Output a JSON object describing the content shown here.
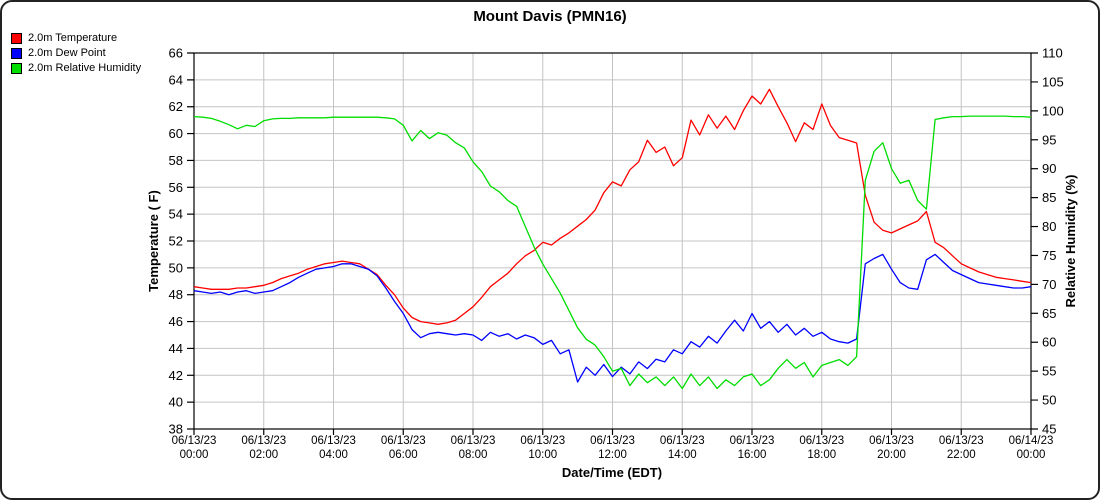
{
  "title": "Mount Davis (PMN16)",
  "legend": [
    {
      "label": "2.0m Temperature",
      "color": "#ff0000"
    },
    {
      "label": "2.0m Dew Point",
      "color": "#0000ff"
    },
    {
      "label": "2.0m Relative Humidity",
      "color": "#00dd00"
    }
  ],
  "colors": {
    "temperature": "#ff0000",
    "dew_point": "#0000ff",
    "relative_humidity": "#00dd00",
    "grid": "#c4c4c4",
    "frame": "#000000"
  },
  "chart_data": {
    "type": "line",
    "title": "Mount Davis (PMN16)",
    "xlabel": "Date/Time (EDT)",
    "ylabel_left": "Temperature ( F)",
    "ylabel_right": "Relative Humidity (%)",
    "x_range_hours": [
      0,
      24
    ],
    "x_start": "06/13/23 00:00",
    "x_end": "06/14/23 00:00",
    "ylim_left": [
      38,
      66
    ],
    "ylim_right": [
      45,
      110
    ],
    "grid": true,
    "legend_position": "top-left",
    "sample_interval_hours": 0.25,
    "left_ticks": [
      38,
      40,
      42,
      44,
      46,
      48,
      50,
      52,
      54,
      56,
      58,
      60,
      62,
      64,
      66
    ],
    "right_ticks": [
      45,
      50,
      55,
      60,
      65,
      70,
      75,
      80,
      85,
      90,
      95,
      100,
      105,
      110
    ],
    "x_ticks": [
      {
        "date": "06/13/23",
        "time": "00:00"
      },
      {
        "date": "06/13/23",
        "time": "02:00"
      },
      {
        "date": "06/13/23",
        "time": "04:00"
      },
      {
        "date": "06/13/23",
        "time": "06:00"
      },
      {
        "date": "06/13/23",
        "time": "08:00"
      },
      {
        "date": "06/13/23",
        "time": "10:00"
      },
      {
        "date": "06/13/23",
        "time": "12:00"
      },
      {
        "date": "06/13/23",
        "time": "14:00"
      },
      {
        "date": "06/13/23",
        "time": "16:00"
      },
      {
        "date": "06/13/23",
        "time": "18:00"
      },
      {
        "date": "06/13/23",
        "time": "20:00"
      },
      {
        "date": "06/13/23",
        "time": "22:00"
      },
      {
        "date": "06/14/23",
        "time": "00:00"
      }
    ],
    "series": [
      {
        "name": "2.0m Temperature",
        "axis": "left",
        "unit": "F",
        "color": "#ff0000",
        "values": [
          48.6,
          48.5,
          48.4,
          48.4,
          48.4,
          48.5,
          48.5,
          48.6,
          48.7,
          48.9,
          49.2,
          49.4,
          49.6,
          49.9,
          50.1,
          50.3,
          50.4,
          50.5,
          50.4,
          50.3,
          49.9,
          49.5,
          48.7,
          48.0,
          47.0,
          46.3,
          46.0,
          45.9,
          45.8,
          45.9,
          46.1,
          46.6,
          47.1,
          47.8,
          48.6,
          49.1,
          49.6,
          50.3,
          50.9,
          51.3,
          51.9,
          51.7,
          52.2,
          52.6,
          53.1,
          53.6,
          54.3,
          55.6,
          56.4,
          56.1,
          57.3,
          57.9,
          59.5,
          58.6,
          59.0,
          57.6,
          58.2,
          61.0,
          59.9,
          61.4,
          60.4,
          61.3,
          60.3,
          61.7,
          62.8,
          62.2,
          63.3,
          62.0,
          60.8,
          59.4,
          60.8,
          60.3,
          62.2,
          60.6,
          59.7,
          59.5,
          59.3,
          55.4,
          53.4,
          52.8,
          52.6,
          52.9,
          53.2,
          53.5,
          54.2,
          51.9,
          51.5,
          50.9,
          50.3,
          50.0,
          49.7,
          49.5,
          49.3,
          49.2,
          49.1,
          49.0,
          48.9
        ]
      },
      {
        "name": "2.0m Dew Point",
        "axis": "left",
        "unit": "F",
        "color": "#0000ff",
        "values": [
          48.3,
          48.2,
          48.1,
          48.2,
          48.0,
          48.2,
          48.3,
          48.1,
          48.2,
          48.3,
          48.6,
          48.9,
          49.3,
          49.6,
          49.9,
          50.0,
          50.1,
          50.3,
          50.3,
          50.1,
          49.9,
          49.4,
          48.5,
          47.5,
          46.6,
          45.4,
          44.8,
          45.1,
          45.2,
          45.1,
          45.0,
          45.1,
          45.0,
          44.6,
          45.2,
          44.9,
          45.1,
          44.7,
          45.0,
          44.8,
          44.3,
          44.6,
          43.6,
          43.9,
          41.5,
          42.6,
          42.0,
          42.8,
          41.9,
          42.6,
          42.1,
          43.0,
          42.5,
          43.2,
          43.0,
          43.9,
          43.6,
          44.5,
          44.1,
          44.9,
          44.4,
          45.3,
          46.1,
          45.3,
          46.6,
          45.5,
          46.0,
          45.2,
          45.8,
          45.0,
          45.5,
          44.9,
          45.2,
          44.7,
          44.5,
          44.4,
          44.7,
          50.3,
          50.7,
          51.0,
          49.9,
          48.9,
          48.5,
          48.4,
          50.6,
          51.0,
          50.4,
          49.8,
          49.5,
          49.2,
          48.9,
          48.8,
          48.7,
          48.6,
          48.5,
          48.5,
          48.6
        ]
      },
      {
        "name": "2.0m Relative Humidity",
        "axis": "right",
        "unit": "%",
        "color": "#00dd00",
        "values": [
          99.0,
          98.9,
          98.7,
          98.2,
          97.6,
          96.9,
          97.5,
          97.3,
          98.3,
          98.6,
          98.7,
          98.7,
          98.8,
          98.8,
          98.8,
          98.8,
          98.9,
          98.9,
          98.9,
          98.9,
          98.9,
          98.9,
          98.8,
          98.6,
          97.5,
          94.8,
          96.6,
          95.2,
          96.2,
          95.8,
          94.5,
          93.6,
          91.2,
          89.5,
          87.0,
          86.0,
          84.5,
          83.5,
          80.0,
          76.5,
          73.5,
          71.0,
          68.5,
          65.5,
          62.5,
          60.5,
          59.5,
          57.5,
          55.0,
          55.5,
          52.5,
          54.5,
          53.0,
          54.0,
          52.5,
          54.0,
          52.0,
          54.5,
          52.5,
          54.0,
          52.0,
          53.5,
          52.5,
          54.0,
          54.5,
          52.5,
          53.5,
          55.5,
          57.0,
          55.5,
          56.5,
          54.0,
          56.0,
          56.5,
          57.0,
          56.0,
          57.5,
          88.0,
          93.0,
          94.5,
          90.0,
          87.5,
          88.0,
          84.5,
          83.0,
          98.5,
          98.8,
          99.0,
          99.0,
          99.1,
          99.1,
          99.1,
          99.1,
          99.1,
          99.0,
          99.0,
          98.9
        ]
      }
    ]
  }
}
